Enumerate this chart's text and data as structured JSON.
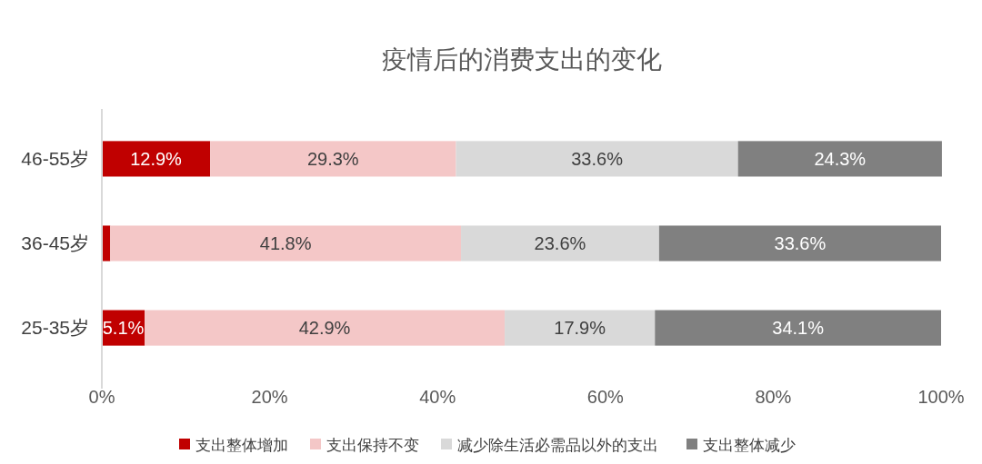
{
  "chart_data": {
    "type": "bar",
    "orientation": "horizontal",
    "stacked": true,
    "title": "疫情后的消费支出的变化",
    "categories": [
      "46-55岁",
      "36-45岁",
      "25-35岁"
    ],
    "series": [
      {
        "name": "支出整体增加",
        "color": "#c00000",
        "values": [
          12.9,
          1.0,
          5.1
        ],
        "value_labels": [
          "12.9%",
          null,
          "5.1%"
        ]
      },
      {
        "name": "支出保持不变",
        "color": "#f4c7c7",
        "values": [
          29.3,
          41.8,
          42.9
        ],
        "value_labels": [
          "29.3%",
          "41.8%",
          "42.9%"
        ]
      },
      {
        "name": "减少除生活必需品以外的支出",
        "color": "#d9d9d9",
        "values": [
          33.6,
          23.6,
          17.9
        ],
        "value_labels": [
          "33.6%",
          "23.6%",
          "17.9%"
        ]
      },
      {
        "name": "支出整体减少",
        "color": "#808080",
        "values": [
          24.3,
          33.6,
          34.1
        ],
        "value_labels": [
          "24.3%",
          "33.6%",
          "34.1%"
        ]
      }
    ],
    "xlim": [
      0,
      100
    ],
    "xticks": [
      {
        "value": 0,
        "label": "0%"
      },
      {
        "value": 20,
        "label": "20%"
      },
      {
        "value": 40,
        "label": "40%"
      },
      {
        "value": 60,
        "label": "60%"
      },
      {
        "value": 80,
        "label": "80%"
      },
      {
        "value": 100,
        "label": "100%"
      }
    ],
    "grid": false,
    "legend": "bottom"
  }
}
